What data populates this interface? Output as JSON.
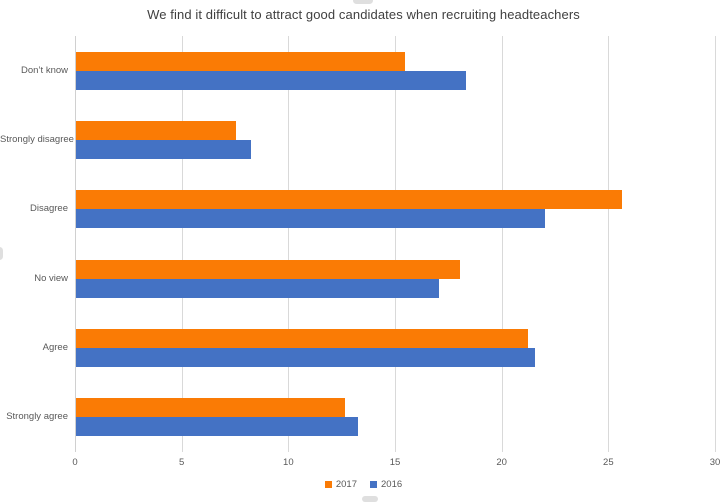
{
  "chart_data": {
    "type": "bar",
    "orientation": "horizontal",
    "title": "We find it difficult to attract good candidates when recruiting headteachers",
    "categories": [
      "Don’t know",
      "Strongly disagree",
      "Disagree",
      "No view",
      "Agree",
      "Strongly agree"
    ],
    "series": [
      {
        "name": "2017",
        "color": "#fa7b05",
        "values": [
          15.4,
          7.5,
          25.6,
          18.0,
          21.2,
          12.6
        ]
      },
      {
        "name": "2016",
        "color": "#4472c4",
        "values": [
          18.3,
          8.2,
          22.0,
          17.0,
          21.5,
          13.2
        ]
      }
    ],
    "xlabel": "",
    "ylabel": "",
    "xlim": [
      0,
      30
    ],
    "xticks": [
      0,
      5,
      10,
      15,
      20,
      25,
      30
    ],
    "grid": true,
    "legend_position": "bottom",
    "colors": {
      "gridline": "#d9d9d9",
      "axis_text": "#595959",
      "title_text": "#404040",
      "background": "#ffffff"
    }
  }
}
